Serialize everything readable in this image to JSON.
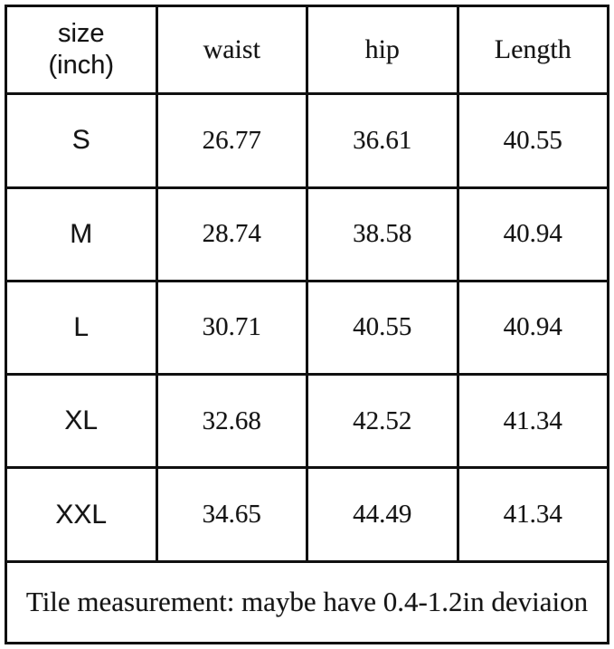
{
  "table": {
    "headers": [
      "size\n(inch)",
      "waist",
      "hip",
      "Length"
    ],
    "rows": [
      {
        "size": "S",
        "waist": "26.77",
        "hip": "36.61",
        "length": "40.55"
      },
      {
        "size": "M",
        "waist": "28.74",
        "hip": "38.58",
        "length": "40.94"
      },
      {
        "size": "L",
        "waist": "30.71",
        "hip": "40.55",
        "length": "40.94"
      },
      {
        "size": "XL",
        "waist": "32.68",
        "hip": "42.52",
        "length": "41.34"
      },
      {
        "size": "XXL",
        "waist": "34.65",
        "hip": "44.49",
        "length": "41.34"
      }
    ],
    "note": "Tile measurement: maybe have 0.4-1.2in deviaion"
  },
  "colors": {
    "border": "#101010",
    "text": "#141414",
    "background": "#ffffff"
  },
  "chart_data": {
    "type": "table",
    "title": "size (inch)",
    "unit": "inch",
    "columns": [
      "size (inch)",
      "waist",
      "hip",
      "Length"
    ],
    "rows": [
      [
        "S",
        26.77,
        36.61,
        40.55
      ],
      [
        "M",
        28.74,
        38.58,
        40.94
      ],
      [
        "L",
        30.71,
        40.55,
        40.94
      ],
      [
        "XL",
        32.68,
        42.52,
        41.34
      ],
      [
        "XXL",
        34.65,
        44.49,
        41.34
      ]
    ],
    "note": "Tile measurement: maybe have 0.4-1.2in deviaion"
  }
}
